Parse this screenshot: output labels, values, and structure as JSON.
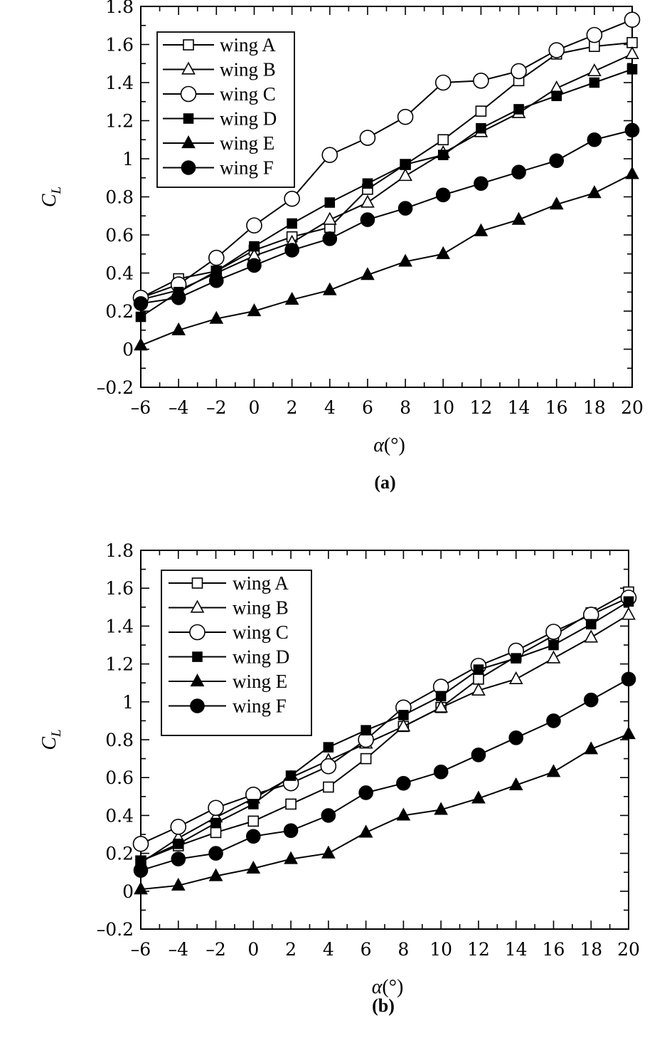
{
  "chart_data": [
    {
      "type": "line",
      "caption": "(a)",
      "xlabel_symbol": "α",
      "xlabel_unit": "(°)",
      "ylabel_main": "C",
      "ylabel_sub": "L",
      "xlim": [
        -6,
        20
      ],
      "ylim": [
        -0.2,
        1.8
      ],
      "xticks": [
        -6,
        -4,
        -2,
        0,
        2,
        4,
        6,
        8,
        10,
        12,
        14,
        16,
        18,
        20
      ],
      "xtick_labels": [
        "–6",
        "–4",
        "–2",
        "0",
        "2",
        "4",
        "6",
        "8",
        "10",
        "12",
        "14",
        "16",
        "18",
        "20"
      ],
      "yticks": [
        -0.2,
        0,
        0.2,
        0.4,
        0.6,
        0.8,
        1,
        1.2,
        1.4,
        1.6,
        1.8
      ],
      "ytick_labels": [
        "–0.2",
        "0",
        "0.2",
        "0.4",
        "0.6",
        "0.8",
        "1",
        "1.2",
        "1.4",
        "1.6",
        "1.8"
      ],
      "legend_position": "top-left",
      "x": [
        -6,
        -4,
        -2,
        0,
        2,
        4,
        6,
        8,
        10,
        12,
        14,
        16,
        18,
        20
      ],
      "series": [
        {
          "name": "wing A",
          "marker": "square-open",
          "values": [
            0.27,
            0.37,
            0.41,
            0.52,
            0.59,
            0.64,
            0.84,
            0.97,
            1.1,
            1.25,
            1.41,
            1.55,
            1.59,
            1.61
          ]
        },
        {
          "name": "wing B",
          "marker": "triangle-open",
          "values": [
            0.26,
            0.31,
            0.4,
            0.49,
            0.56,
            0.68,
            0.77,
            0.91,
            1.03,
            1.14,
            1.24,
            1.37,
            1.46,
            1.55
          ]
        },
        {
          "name": "wing C",
          "marker": "circle-open",
          "values": [
            0.27,
            0.34,
            0.48,
            0.65,
            0.79,
            1.02,
            1.11,
            1.22,
            1.4,
            1.41,
            1.46,
            1.57,
            1.65,
            1.73
          ]
        },
        {
          "name": "wing D",
          "marker": "square-filled",
          "values": [
            0.17,
            0.3,
            0.41,
            0.54,
            0.66,
            0.77,
            0.87,
            0.97,
            1.02,
            1.16,
            1.26,
            1.33,
            1.4,
            1.47
          ]
        },
        {
          "name": "wing E",
          "marker": "triangle-filled",
          "values": [
            0.02,
            0.1,
            0.16,
            0.2,
            0.26,
            0.31,
            0.39,
            0.46,
            0.5,
            0.62,
            0.68,
            0.76,
            0.82,
            0.92
          ]
        },
        {
          "name": "wing F",
          "marker": "circle-filled",
          "values": [
            0.24,
            0.27,
            0.36,
            0.44,
            0.52,
            0.58,
            0.68,
            0.74,
            0.81,
            0.87,
            0.93,
            0.99,
            1.1,
            1.15
          ]
        }
      ]
    },
    {
      "type": "line",
      "caption": "(b)",
      "xlabel_symbol": "α",
      "xlabel_unit": "(°)",
      "ylabel_main": "C",
      "ylabel_sub": "L",
      "xlim": [
        -6,
        20
      ],
      "ylim": [
        -0.2,
        1.8
      ],
      "xticks": [
        -6,
        -4,
        -2,
        0,
        2,
        4,
        6,
        8,
        10,
        12,
        14,
        16,
        18,
        20
      ],
      "xtick_labels": [
        "–6",
        "–4",
        "–2",
        "0",
        "2",
        "4",
        "6",
        "8",
        "10",
        "12",
        "14",
        "16",
        "18",
        "20"
      ],
      "yticks": [
        -0.2,
        0,
        0.2,
        0.4,
        0.6,
        0.8,
        1,
        1.2,
        1.4,
        1.6,
        1.8
      ],
      "ytick_labels": [
        "–0.2",
        "0",
        "0.2",
        "0.4",
        "0.6",
        "0.8",
        "1",
        "1.2",
        "1.4",
        "1.6",
        "1.8"
      ],
      "legend_position": "top-left",
      "x": [
        -6,
        -4,
        -2,
        0,
        2,
        4,
        6,
        8,
        10,
        12,
        14,
        16,
        18,
        20
      ],
      "series": [
        {
          "name": "wing A",
          "marker": "square-open",
          "values": [
            0.16,
            0.24,
            0.31,
            0.37,
            0.46,
            0.55,
            0.7,
            0.87,
            0.97,
            1.12,
            1.24,
            1.35,
            1.47,
            1.58
          ]
        },
        {
          "name": "wing B",
          "marker": "triangle-open",
          "values": [
            0.15,
            0.28,
            0.39,
            0.49,
            0.6,
            0.69,
            0.78,
            0.87,
            0.97,
            1.06,
            1.12,
            1.23,
            1.34,
            1.46
          ]
        },
        {
          "name": "wing C",
          "marker": "circle-open",
          "values": [
            0.25,
            0.34,
            0.44,
            0.51,
            0.57,
            0.66,
            0.8,
            0.97,
            1.08,
            1.19,
            1.27,
            1.37,
            1.46,
            1.55
          ]
        },
        {
          "name": "wing D",
          "marker": "square-filled",
          "values": [
            0.16,
            0.25,
            0.36,
            0.46,
            0.61,
            0.76,
            0.85,
            0.93,
            1.03,
            1.17,
            1.23,
            1.3,
            1.41,
            1.53
          ]
        },
        {
          "name": "wing E",
          "marker": "triangle-filled",
          "values": [
            0.01,
            0.03,
            0.08,
            0.12,
            0.17,
            0.2,
            0.31,
            0.4,
            0.43,
            0.49,
            0.56,
            0.63,
            0.75,
            0.83
          ]
        },
        {
          "name": "wing F",
          "marker": "circle-filled",
          "values": [
            0.11,
            0.17,
            0.2,
            0.29,
            0.32,
            0.4,
            0.52,
            0.57,
            0.63,
            0.72,
            0.81,
            0.9,
            1.01,
            1.12
          ]
        }
      ]
    }
  ]
}
